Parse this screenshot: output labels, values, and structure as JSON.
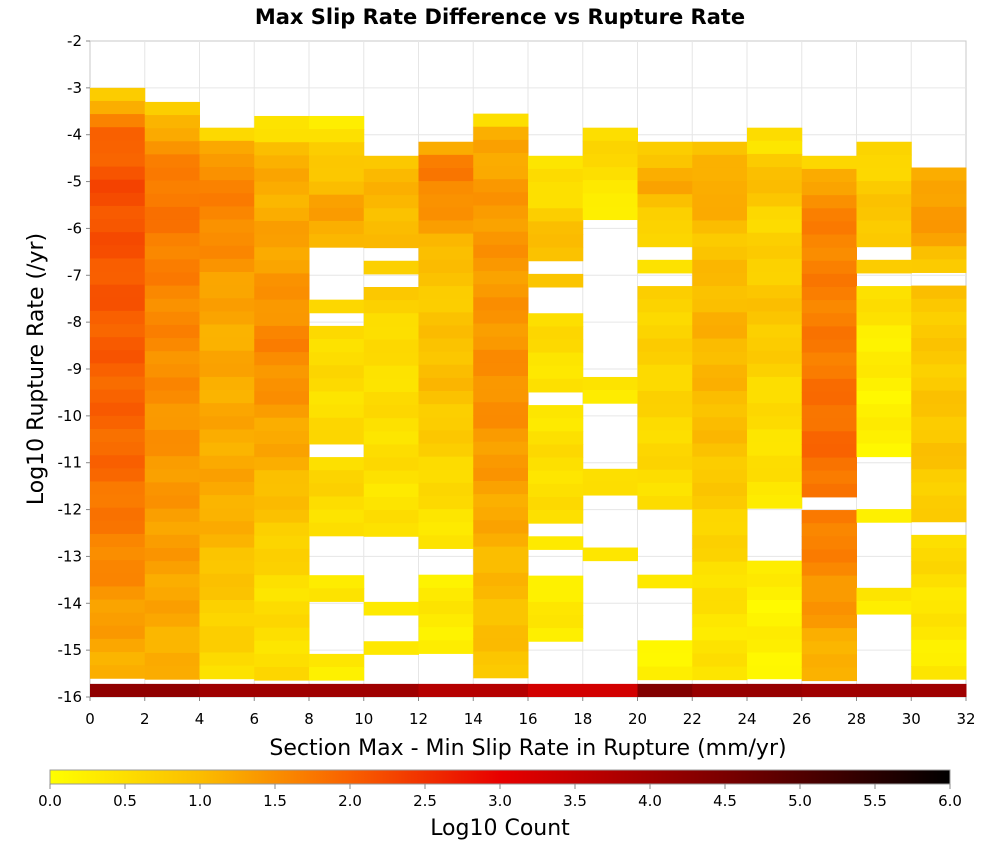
{
  "chart_data": {
    "type": "heatmap",
    "title": "Max Slip Rate Difference vs Rupture Rate",
    "xlabel": "Section Max - Min Slip Rate in Rupture (mm/yr)",
    "ylabel": "Log10 Rupture Rate (/yr)",
    "xlim": [
      0,
      32
    ],
    "ylim": [
      -16,
      -2
    ],
    "x_bin_width": 2,
    "y_bin_height": 0.28,
    "x_ticks": [
      "0",
      "2",
      "4",
      "6",
      "8",
      "10",
      "12",
      "14",
      "16",
      "18",
      "20",
      "22",
      "24",
      "26",
      "28",
      "30",
      "32"
    ],
    "y_ticks": [
      "-2",
      "-3",
      "-4",
      "-5",
      "-6",
      "-7",
      "-8",
      "-9",
      "-10",
      "-11",
      "-12",
      "-13",
      "-14",
      "-15",
      "-16"
    ],
    "colorbar": {
      "label": "Log10 Count",
      "range": [
        0,
        6
      ],
      "ticks": [
        "0.0",
        "0.5",
        "1.0",
        "1.5",
        "2.0",
        "2.5",
        "3.0",
        "3.5",
        "4.0",
        "4.5",
        "5.0",
        "5.5",
        "6.0"
      ],
      "stops": [
        {
          "v": 0.0,
          "color": "#ffff00"
        },
        {
          "v": 1.0,
          "color": "#fbbd00"
        },
        {
          "v": 2.0,
          "color": "#f96000"
        },
        {
          "v": 3.0,
          "color": "#e80000"
        },
        {
          "v": 4.5,
          "color": "#7a0000"
        },
        {
          "v": 6.0,
          "color": "#000000"
        }
      ]
    },
    "columns": [
      {
        "x": 0,
        "top": -3.0,
        "bottom_value": 4.2,
        "profile": [
          [
            0,
            0.6
          ],
          [
            0.5,
            1.4
          ],
          [
            1,
            1.9
          ],
          [
            2,
            2.2
          ],
          [
            4,
            2.1
          ],
          [
            6,
            2.0
          ],
          [
            8,
            1.9
          ],
          [
            10,
            1.6
          ],
          [
            12,
            1.2
          ]
        ]
      },
      {
        "x": 2,
        "top": -3.3,
        "bottom_value": 4.2,
        "profile": [
          [
            0,
            0.4
          ],
          [
            0.5,
            1.2
          ],
          [
            1,
            1.5
          ],
          [
            2,
            1.8
          ],
          [
            4,
            1.6
          ],
          [
            6,
            1.5
          ],
          [
            8,
            1.4
          ],
          [
            10,
            1.3
          ],
          [
            12,
            1.1
          ]
        ]
      },
      {
        "x": 4,
        "top": -3.85,
        "bottom_value": 4.0,
        "profile": [
          [
            0,
            0.2
          ],
          [
            0.5,
            1.3
          ],
          [
            1,
            1.6
          ],
          [
            2,
            1.6
          ],
          [
            4,
            1.2
          ],
          [
            6,
            1.2
          ],
          [
            8,
            1.2
          ],
          [
            10,
            0.8
          ],
          [
            12,
            0.5
          ]
        ]
      },
      {
        "x": 6,
        "top": -3.6,
        "bottom_value": 4.0,
        "profile": [
          [
            0,
            0.5
          ],
          [
            0.3,
            0.1
          ],
          [
            0.6,
            1.1
          ],
          [
            2,
            1.2
          ],
          [
            3,
            1.3
          ],
          [
            5,
            1.6
          ],
          [
            6,
            1.4
          ],
          [
            8,
            1.0
          ],
          [
            10,
            0.5
          ]
        ]
      },
      {
        "x": 8,
        "top": -3.6,
        "bottom_value": 4.0,
        "profile": [
          [
            0,
            0.3
          ],
          [
            1,
            0.8
          ],
          [
            2,
            1.3
          ],
          [
            3,
            1.1
          ],
          [
            4,
            0.6
          ],
          [
            6,
            0.5
          ],
          [
            8,
            0.6
          ],
          [
            10,
            0.3
          ]
        ]
      },
      {
        "x": 10,
        "top": -4.45,
        "bottom_value": 4.0,
        "profile": [
          [
            0,
            0.9
          ],
          [
            1,
            1.1
          ],
          [
            2,
            0.9
          ],
          [
            4,
            0.5
          ],
          [
            6,
            0.5
          ],
          [
            8,
            0.4
          ]
        ]
      },
      {
        "x": 12,
        "top": -4.15,
        "bottom_value": 3.7,
        "profile": [
          [
            0,
            1.0
          ],
          [
            0.6,
            1.8
          ],
          [
            1.5,
            1.4
          ],
          [
            3,
            0.8
          ],
          [
            5,
            1.0
          ],
          [
            7,
            0.6
          ],
          [
            9,
            0.3
          ]
        ]
      },
      {
        "x": 14,
        "top": -3.55,
        "bottom_value": 3.7,
        "profile": [
          [
            0,
            0.3
          ],
          [
            0.5,
            1.2
          ],
          [
            2,
            1.4
          ],
          [
            4,
            1.4
          ],
          [
            6,
            1.5
          ],
          [
            8,
            1.3
          ],
          [
            10,
            1.0
          ],
          [
            12,
            0.9
          ]
        ]
      },
      {
        "x": 16,
        "top": -4.45,
        "bottom_value": 3.3,
        "profile": [
          [
            0,
            0.3
          ],
          [
            1,
            0.6
          ],
          [
            2,
            1.1
          ],
          [
            3,
            0.6
          ],
          [
            5,
            0.4
          ],
          [
            7,
            0.5
          ],
          [
            9,
            0.3
          ]
        ]
      },
      {
        "x": 18,
        "top": -3.85,
        "bottom_value": 3.3,
        "profile": [
          [
            0,
            0.5
          ],
          [
            1,
            0.6
          ],
          [
            1.6,
            0.1
          ],
          [
            2.5,
            0.4
          ]
        ]
      },
      {
        "x": 20,
        "top": -4.15,
        "bottom_value": 4.4,
        "profile": [
          [
            0,
            0.8
          ],
          [
            1,
            1.2
          ],
          [
            2,
            0.5
          ],
          [
            4,
            0.7
          ],
          [
            6,
            0.6
          ],
          [
            8,
            0.5
          ],
          [
            10,
            0.2
          ]
        ]
      },
      {
        "x": 22,
        "top": -4.15,
        "bottom_value": 4.1,
        "profile": [
          [
            0,
            0.8
          ],
          [
            1,
            1.3
          ],
          [
            2,
            0.9
          ],
          [
            4,
            1.1
          ],
          [
            6,
            1.0
          ],
          [
            8,
            0.7
          ],
          [
            10,
            0.4
          ]
        ]
      },
      {
        "x": 24,
        "top": -3.85,
        "bottom_value": 4.1,
        "profile": [
          [
            0,
            0.7
          ],
          [
            0.3,
            0.1
          ],
          [
            0.8,
            1.1
          ],
          [
            2,
            0.6
          ],
          [
            4,
            0.9
          ],
          [
            6,
            0.5
          ],
          [
            8,
            0.4
          ],
          [
            10,
            0.2
          ]
        ]
      },
      {
        "x": 26,
        "top": -4.45,
        "bottom_value": 4.0,
        "profile": [
          [
            0,
            0.1
          ],
          [
            0.3,
            1.0
          ],
          [
            1,
            1.6
          ],
          [
            4,
            1.7
          ],
          [
            6,
            1.9
          ],
          [
            8,
            1.7
          ],
          [
            10,
            1.3
          ],
          [
            11.5,
            0.9
          ]
        ]
      },
      {
        "x": 28,
        "top": -4.15,
        "bottom_value": 4.0,
        "profile": [
          [
            0,
            0.5
          ],
          [
            1,
            0.8
          ],
          [
            2,
            0.9
          ],
          [
            4,
            0.3
          ],
          [
            6,
            0.2
          ],
          [
            8,
            0.3
          ]
        ]
      },
      {
        "x": 30,
        "top": -4.7,
        "bottom_value": 4.0,
        "profile": [
          [
            0,
            1.0
          ],
          [
            1,
            1.5
          ],
          [
            2,
            0.9
          ],
          [
            4,
            0.8
          ],
          [
            6,
            0.9
          ],
          [
            8,
            0.6
          ],
          [
            10,
            0.3
          ]
        ]
      }
    ],
    "empty_ranges": [
      [
        8,
        -6.45,
        -7.55
      ],
      [
        8,
        -7.85,
        -8.05
      ],
      [
        8,
        -10.65,
        -10.95
      ],
      [
        8,
        -12.6,
        -13.5
      ],
      [
        8,
        -13.9,
        -15.2
      ],
      [
        10,
        -6.45,
        -6.75
      ],
      [
        10,
        -7.05,
        -7.25
      ],
      [
        10,
        -12.6,
        -14.0
      ],
      [
        10,
        -14.2,
        -14.9
      ],
      [
        10,
        -15.2,
        -15.8
      ],
      [
        12,
        -12.85,
        -13.4
      ],
      [
        12,
        -15.1,
        -15.8
      ],
      [
        16,
        -6.75,
        -7.05
      ],
      [
        16,
        -7.35,
        -7.85
      ],
      [
        16,
        -9.55,
        -9.85
      ],
      [
        16,
        -12.3,
        -12.55
      ],
      [
        16,
        -12.85,
        -13.3
      ],
      [
        16,
        -13.55,
        -13.8
      ],
      [
        16,
        -14.7,
        -15.8
      ],
      [
        18,
        -5.8,
        -9.3
      ],
      [
        18,
        -9.6,
        -11.0
      ],
      [
        18,
        -11.6,
        -12.75
      ],
      [
        18,
        -13.05,
        -15.8
      ],
      [
        20,
        -6.45,
        -6.7
      ],
      [
        20,
        -7.0,
        -7.25
      ],
      [
        20,
        -11.6,
        -11.8
      ],
      [
        20,
        -12.1,
        -13.4
      ],
      [
        20,
        -13.65,
        -14.7
      ],
      [
        20,
        -15.5,
        -15.8
      ],
      [
        24,
        -12.1,
        -13.0
      ],
      [
        24,
        -13.6,
        -13.75
      ],
      [
        26,
        -11.8,
        -12.05
      ],
      [
        28,
        -6.45,
        -6.75
      ],
      [
        28,
        -7.05,
        -7.3
      ],
      [
        28,
        -10.95,
        -12.1
      ],
      [
        28,
        -12.4,
        -13.8
      ],
      [
        28,
        -14.1,
        -15.8
      ],
      [
        30,
        -6.95,
        -7.25
      ],
      [
        30,
        -12.15,
        -12.4
      ],
      [
        30,
        -13.8,
        -14.05
      ]
    ]
  }
}
